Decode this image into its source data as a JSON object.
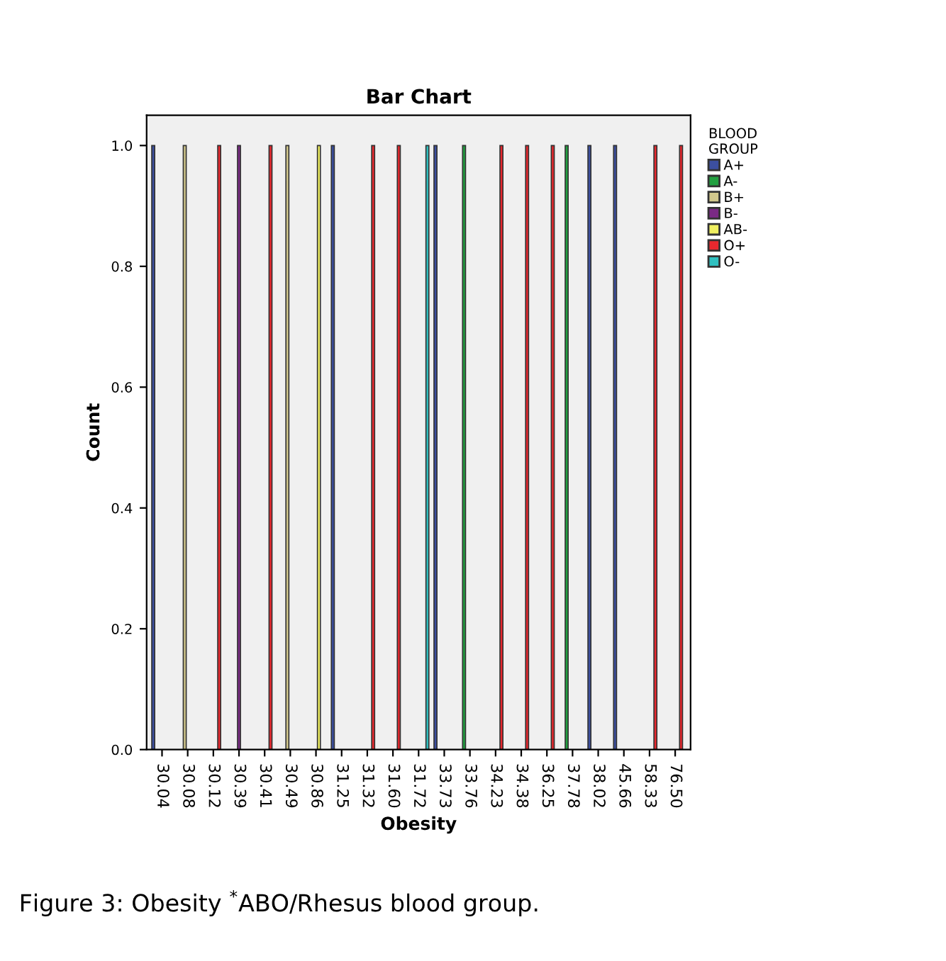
{
  "chart_data": {
    "type": "bar",
    "title": "Bar Chart",
    "xlabel": "Obesity",
    "ylabel": "Count",
    "legend_title": "BLOOD\nGROUP",
    "legend": "top right",
    "categories": [
      "30.04",
      "30.08",
      "30.12",
      "30.39",
      "30.41",
      "30.49",
      "30.86",
      "31.25",
      "31.32",
      "31.60",
      "31.72",
      "33.73",
      "33.76",
      "34.23",
      "34.38",
      "36.25",
      "37.78",
      "38.02",
      "45.66",
      "58.33",
      "76.50"
    ],
    "series": [
      {
        "name": "A+",
        "color": "#3c4fa0",
        "values": [
          1,
          null,
          null,
          null,
          null,
          null,
          null,
          1,
          null,
          null,
          null,
          1,
          null,
          null,
          null,
          null,
          null,
          1,
          1,
          null,
          null
        ]
      },
      {
        "name": "A-",
        "color": "#22a040",
        "values": [
          null,
          null,
          null,
          null,
          null,
          null,
          null,
          null,
          null,
          null,
          null,
          null,
          1,
          null,
          null,
          null,
          1,
          null,
          null,
          null,
          null
        ]
      },
      {
        "name": "B+",
        "color": "#d2c88c",
        "values": [
          null,
          1,
          null,
          null,
          null,
          1,
          null,
          null,
          null,
          null,
          null,
          null,
          null,
          null,
          null,
          null,
          null,
          null,
          null,
          null,
          null
        ]
      },
      {
        "name": "B-",
        "color": "#7a2a85",
        "values": [
          null,
          null,
          null,
          1,
          null,
          null,
          null,
          null,
          null,
          null,
          null,
          null,
          null,
          null,
          null,
          null,
          null,
          null,
          null,
          null,
          null
        ]
      },
      {
        "name": "AB-",
        "color": "#f0f060",
        "values": [
          null,
          null,
          null,
          null,
          null,
          null,
          1,
          null,
          null,
          null,
          null,
          null,
          null,
          null,
          null,
          null,
          null,
          null,
          null,
          null,
          null
        ]
      },
      {
        "name": "O+",
        "color": "#e8282e",
        "values": [
          null,
          null,
          1,
          null,
          1,
          null,
          null,
          null,
          1,
          1,
          null,
          null,
          null,
          1,
          1,
          1,
          null,
          null,
          null,
          1,
          1
        ]
      },
      {
        "name": "O-",
        "color": "#30c0c0",
        "values": [
          null,
          null,
          null,
          null,
          null,
          null,
          null,
          null,
          null,
          null,
          1,
          null,
          null,
          null,
          null,
          null,
          null,
          null,
          null,
          null,
          null
        ]
      }
    ],
    "ylim": [
      0,
      1.05
    ],
    "yticks": [
      {
        "value": 0,
        "label": "0.0"
      },
      {
        "value": 0.2,
        "label": "0.2"
      },
      {
        "value": 0.4,
        "label": "0.4"
      },
      {
        "value": 0.6,
        "label": "0.6"
      },
      {
        "value": 0.8,
        "label": "0.8"
      },
      {
        "value": 1,
        "label": "1.0"
      }
    ],
    "grid": false,
    "annotations": [
      "Figure 3: Obesity $^{*}$ABO/Rhesus blood group."
    ]
  }
}
